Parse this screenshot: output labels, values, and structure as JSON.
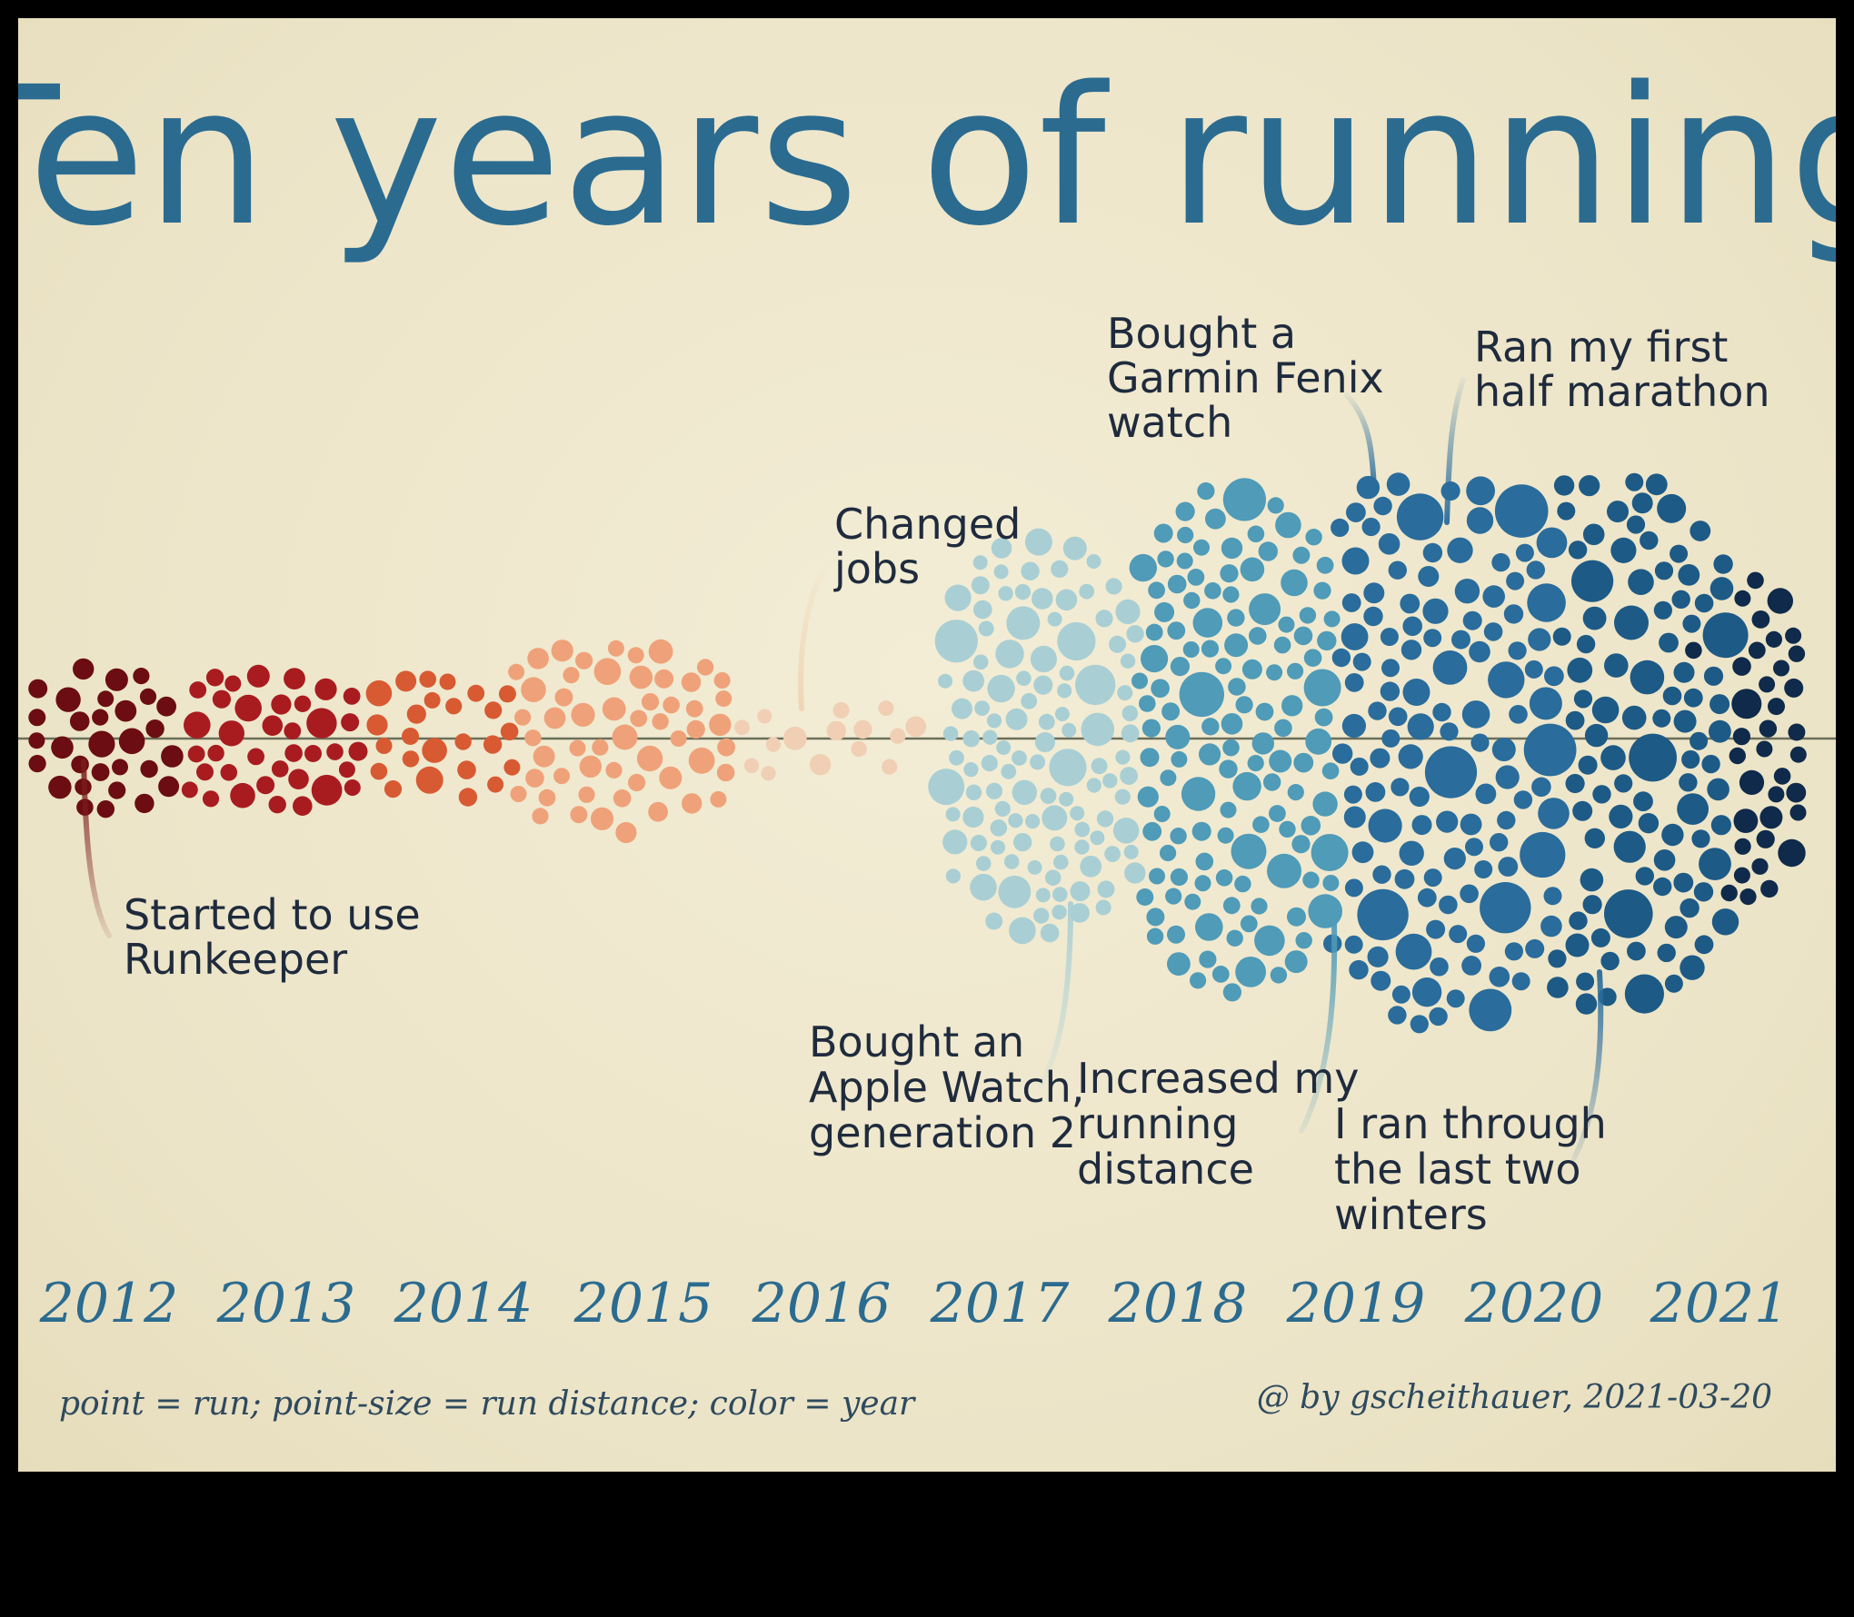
{
  "chart_data": {
    "type": "scatter",
    "title": "Ten years of running",
    "encoding": "point = run; point-size = run distance; color = year",
    "credit": "@ by gscheithauer, 2021-03-20",
    "years": [
      "2012",
      "2013",
      "2014",
      "2015",
      "2016",
      "2017",
      "2018",
      "2019",
      "2020",
      "2021"
    ],
    "approx_runs_per_year": [
      30,
      55,
      25,
      55,
      15,
      120,
      260,
      230,
      200,
      45
    ],
    "year_colors": {
      "2012": "#6b0d12",
      "2013": "#a81c20",
      "2014": "#d85a33",
      "2015": "#efa27a",
      "2016": "#f0cfb4",
      "2017": "#a9cfd4",
      "2018": "#4f9bb8",
      "2019": "#2a6c9b",
      "2020": "#1d5a86",
      "2021": "#0f2a4a"
    },
    "annotations": [
      {
        "id": "runkeeper",
        "lines": [
          "Started to use",
          "Runkeeper"
        ],
        "color": "#7a1c1c"
      },
      {
        "id": "jobs",
        "lines": [
          "Changed",
          "jobs"
        ],
        "color": "#efd6b5"
      },
      {
        "id": "apple-watch",
        "lines": [
          "Bought an",
          "Apple Watch,",
          "generation 2"
        ],
        "color": "#a9cfd4"
      },
      {
        "id": "distance",
        "lines": [
          "Increased my",
          "running",
          "distance"
        ],
        "color": "#4f9bb8"
      },
      {
        "id": "garmin",
        "lines": [
          "Bought a",
          "Garmin Fenix",
          "watch"
        ],
        "color": "#4f8fb0"
      },
      {
        "id": "half-marathon",
        "lines": [
          "Ran my first",
          "half marathon"
        ],
        "color": "#2a6c9b"
      },
      {
        "id": "winters",
        "lines": [
          "I ran through",
          "the last two",
          "winters"
        ],
        "color": "#2a6c9b"
      }
    ]
  }
}
